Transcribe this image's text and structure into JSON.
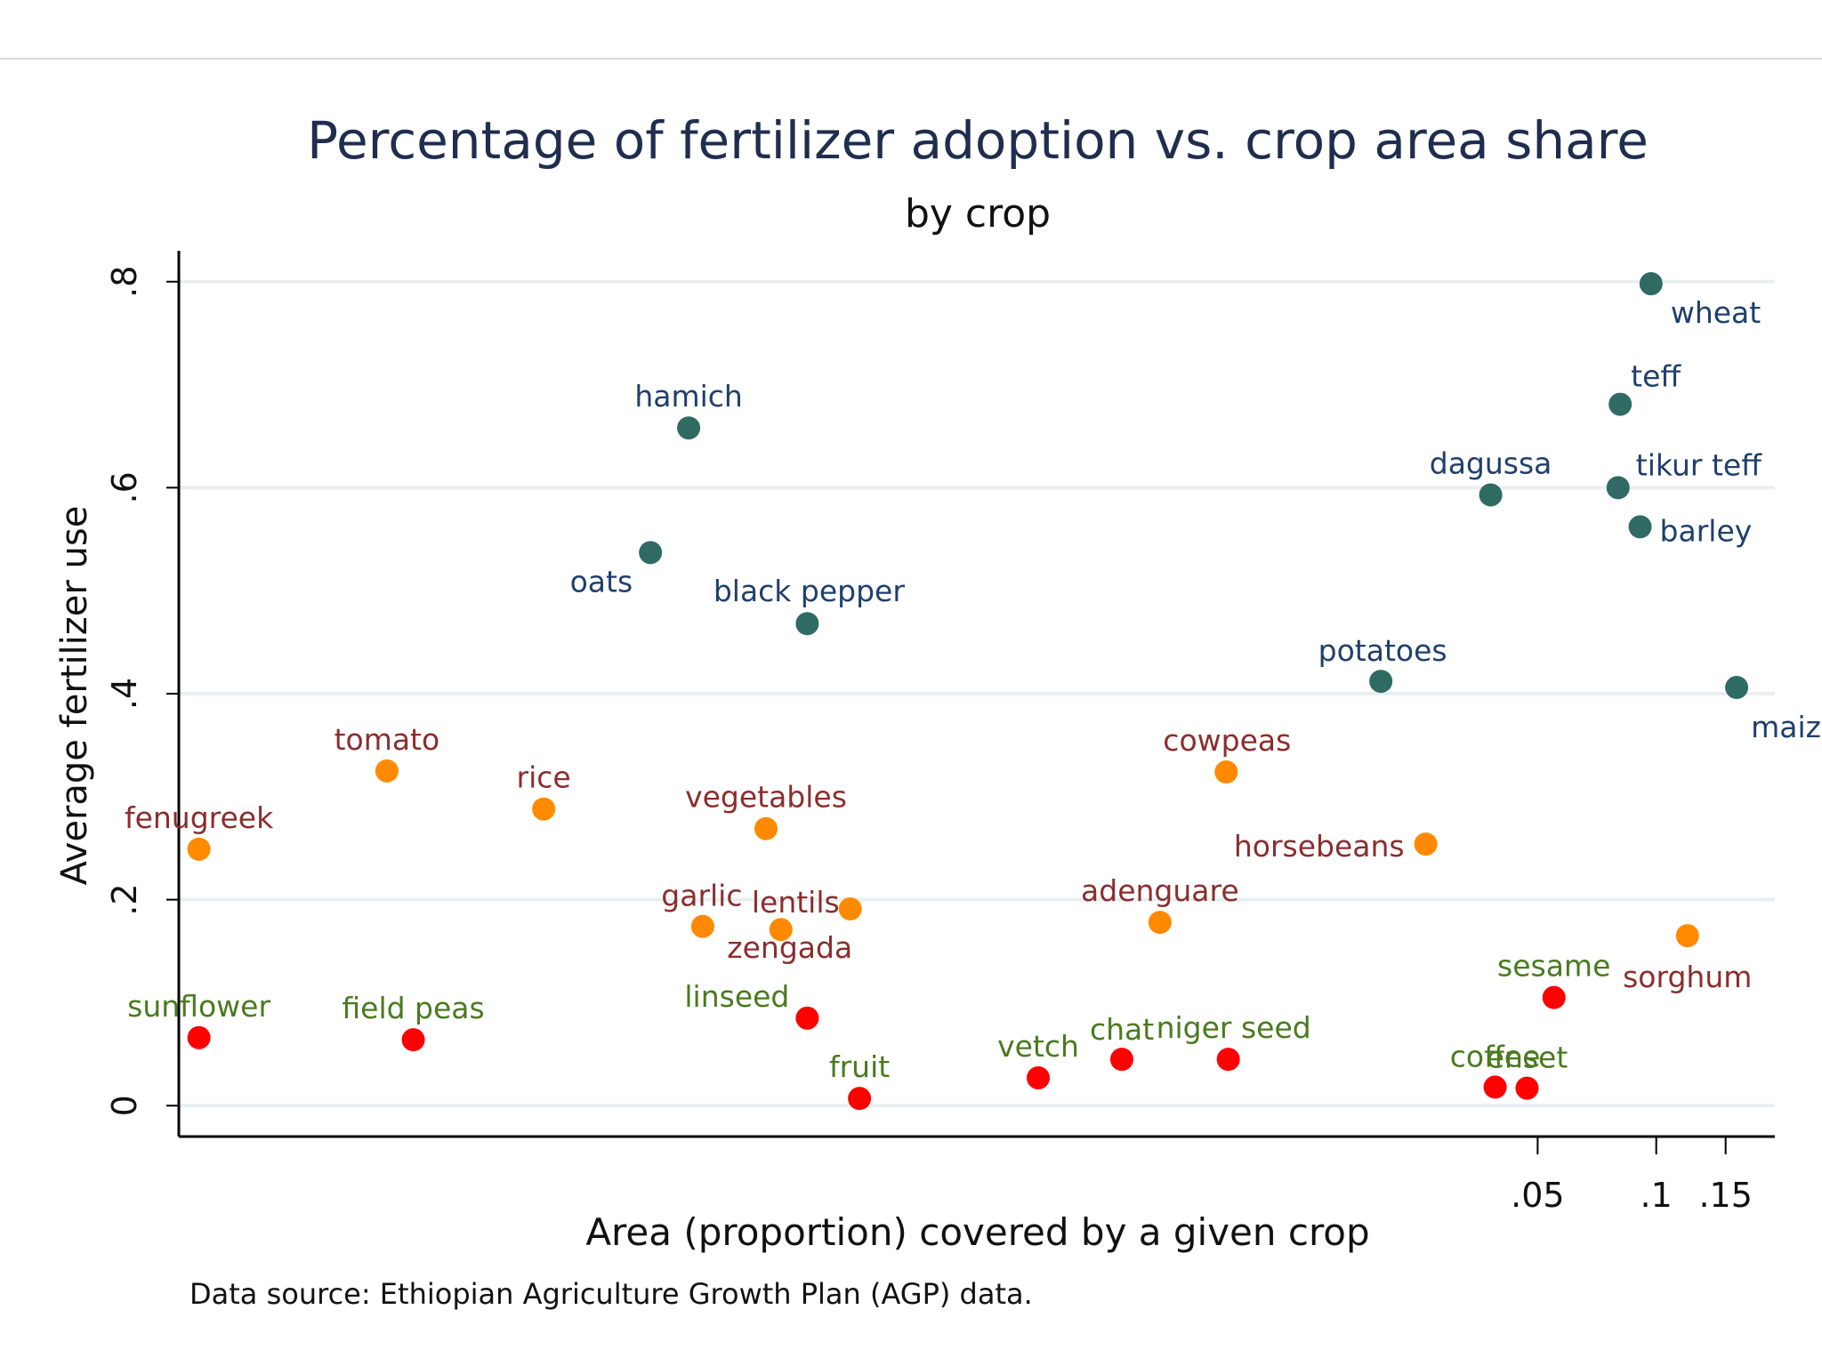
{
  "chart_data": {
    "type": "scatter",
    "title": "Percentage of fertilizer adoption vs. crop area share",
    "subtitle": "by crop",
    "xlabel": "Area (proportion) covered by a given crop",
    "ylabel": "Average fertilizer use",
    "note": "Data source:  Ethiopian Agriculture Growth Plan (AGP) data.",
    "x_scale": "nonlinear",
    "x_ticks": [
      {
        "value": 0.05,
        "label": ".05"
      },
      {
        "value": 0.1,
        "label": ".1"
      },
      {
        "value": 0.15,
        "label": ".15"
      }
    ],
    "y_ticks": [
      {
        "value": 0,
        "label": "0"
      },
      {
        "value": 0.2,
        "label": ".2"
      },
      {
        "value": 0.4,
        "label": ".4"
      },
      {
        "value": 0.6,
        "label": ".6"
      },
      {
        "value": 0.8,
        "label": ".8"
      }
    ],
    "ylim": [
      -0.03,
      0.83
    ],
    "grid": "horizontal",
    "group_colors": {
      "high": "#2f6b62",
      "mid": "#ff8a00",
      "low": "#ff0000"
    },
    "label_colors": {
      "high": "#1f3f6d",
      "mid": "#8b2d2d",
      "low": "#4a7a1e"
    },
    "points": [
      {
        "label": "wheat",
        "x": 0.097,
        "y": 0.798,
        "group": "high"
      },
      {
        "label": "teff",
        "x": 0.081,
        "y": 0.681,
        "group": "high"
      },
      {
        "label": "hamich",
        "x": 0.00035,
        "y": 0.658,
        "group": "high"
      },
      {
        "label": "dagussa",
        "x": 0.038,
        "y": 0.593,
        "group": "high"
      },
      {
        "label": "tikur teff",
        "x": 0.08,
        "y": 0.6,
        "group": "high"
      },
      {
        "label": "barley",
        "x": 0.091,
        "y": 0.562,
        "group": "high"
      },
      {
        "label": "oats",
        "x": 0.00028,
        "y": 0.537,
        "group": "high"
      },
      {
        "label": "black pepper",
        "x": 0.0007,
        "y": 0.468,
        "group": "high"
      },
      {
        "label": "potatoes",
        "x": 0.02,
        "y": 0.412,
        "group": "high"
      },
      {
        "label": "maiz",
        "x": 0.16,
        "y": 0.406,
        "group": "high"
      },
      {
        "label": "tomato",
        "x": 6e-05,
        "y": 0.325,
        "group": "mid"
      },
      {
        "label": "cowpeas",
        "x": 0.0081,
        "y": 0.324,
        "group": "mid"
      },
      {
        "label": "rice",
        "x": 0.00015,
        "y": 0.288,
        "group": "mid"
      },
      {
        "label": "vegetables",
        "x": 0.00055,
        "y": 0.269,
        "group": "mid"
      },
      {
        "label": "fenugreek",
        "x": 2e-05,
        "y": 0.249,
        "group": "mid"
      },
      {
        "label": "horsebeans",
        "x": 0.026,
        "y": 0.254,
        "group": "mid"
      },
      {
        "label": "garlic",
        "x": 0.00038,
        "y": 0.174,
        "group": "mid"
      },
      {
        "label": "lentils",
        "x": 0.0009,
        "y": 0.191,
        "group": "mid"
      },
      {
        "label": "zengada",
        "x": 0.0006,
        "y": 0.171,
        "group": "mid"
      },
      {
        "label": "adenguare",
        "x": 0.0055,
        "y": 0.178,
        "group": "mid"
      },
      {
        "label": "sorghum",
        "x": 0.12,
        "y": 0.165,
        "group": "mid"
      },
      {
        "label": "sunflower",
        "x": 2e-05,
        "y": 0.066,
        "group": "low"
      },
      {
        "label": "field peas",
        "x": 7e-05,
        "y": 0.064,
        "group": "low"
      },
      {
        "label": "linseed",
        "x": 0.0007,
        "y": 0.085,
        "group": "low"
      },
      {
        "label": "sesame",
        "x": 0.055,
        "y": 0.105,
        "group": "low"
      },
      {
        "label": "chat",
        "x": 0.0044,
        "y": 0.045,
        "group": "low"
      },
      {
        "label": "niger seed",
        "x": 0.0082,
        "y": 0.045,
        "group": "low"
      },
      {
        "label": "vetch",
        "x": 0.0027,
        "y": 0.027,
        "group": "low"
      },
      {
        "label": "fruit",
        "x": 0.00095,
        "y": 0.007,
        "group": "low"
      },
      {
        "label": "coffee",
        "x": 0.039,
        "y": 0.018,
        "group": "low"
      },
      {
        "label": "enset",
        "x": 0.047,
        "y": 0.017,
        "group": "low"
      }
    ]
  }
}
